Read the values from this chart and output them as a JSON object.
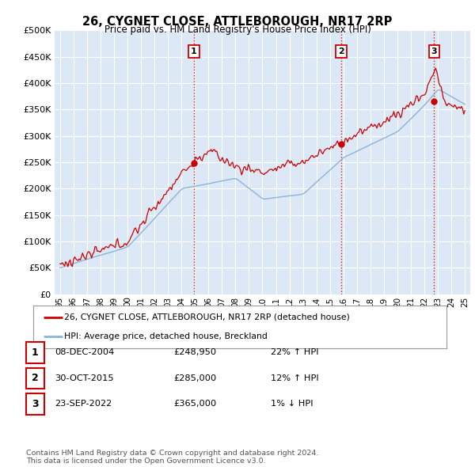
{
  "title": "26, CYGNET CLOSE, ATTLEBOROUGH, NR17 2RP",
  "subtitle": "Price paid vs. HM Land Registry's House Price Index (HPI)",
  "hpi_line_color": "#8ab4d8",
  "price_line_color": "#cc0000",
  "vline_color": "#cc0000",
  "background_color": "#ffffff",
  "plot_bg_color": "#dce8f5",
  "grid_color": "#ffffff",
  "ylim": [
    0,
    500000
  ],
  "yticks": [
    0,
    50000,
    100000,
    150000,
    200000,
    250000,
    300000,
    350000,
    400000,
    450000,
    500000
  ],
  "sale_dates_year": [
    2004.92,
    2015.83,
    2022.72
  ],
  "sale_prices": [
    248950,
    285000,
    365000
  ],
  "sale_labels": [
    "1",
    "2",
    "3"
  ],
  "legend_entries": [
    "26, CYGNET CLOSE, ATTLEBOROUGH, NR17 2RP (detached house)",
    "HPI: Average price, detached house, Breckland"
  ],
  "table_rows": [
    {
      "label": "1",
      "date": "08-DEC-2004",
      "price": "£248,950",
      "pct": "22%",
      "arrow": "↑",
      "hpi": "HPI"
    },
    {
      "label": "2",
      "date": "30-OCT-2015",
      "price": "£285,000",
      "pct": "12%",
      "arrow": "↑",
      "hpi": "HPI"
    },
    {
      "label": "3",
      "date": "23-SEP-2022",
      "price": "£365,000",
      "pct": "1%",
      "arrow": "↓",
      "hpi": "HPI"
    }
  ],
  "footer": "Contains HM Land Registry data © Crown copyright and database right 2024.\nThis data is licensed under the Open Government Licence v3.0."
}
